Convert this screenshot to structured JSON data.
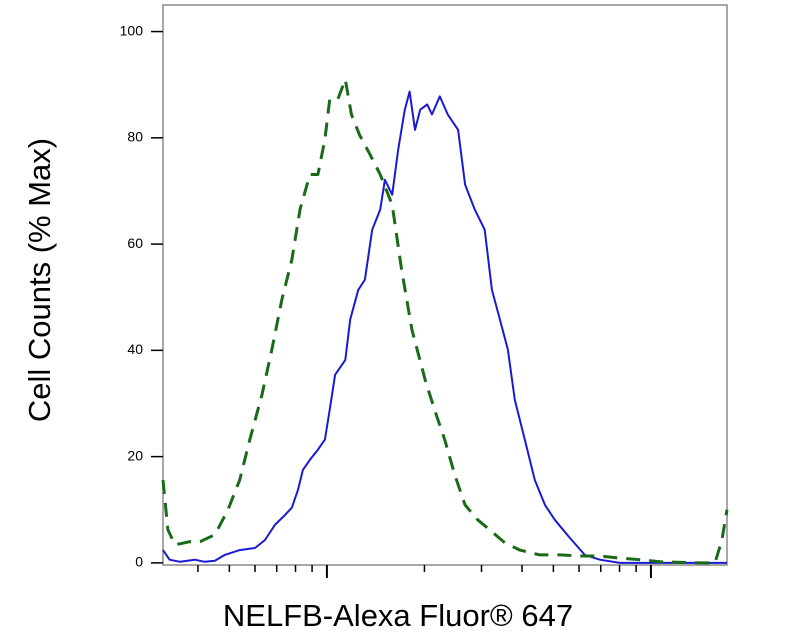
{
  "chart_data": {
    "type": "line",
    "x_label": "NELFB-Alexa Fluor® 647",
    "y_label": "Cell Counts (% Max)",
    "xscale": "log",
    "xlim": [
      31.2,
      1717
    ],
    "ylim": [
      -0.4,
      105
    ],
    "xticks": [
      40,
      50,
      60,
      70,
      80,
      90,
      100,
      200,
      300,
      400,
      500,
      600,
      700,
      800,
      900,
      1000
    ],
    "yticks": [
      0,
      20,
      40,
      60,
      80,
      100
    ],
    "series": [
      {
        "color": "#1a1ad2",
        "style": "solid",
        "x": [
          31.2,
          32.7,
          35.2,
          39.1,
          42.0,
          45.1,
          48.4,
          53.8,
          60.0,
          64.4,
          69.2,
          74.2,
          78.0,
          81.4,
          84.3,
          88.6,
          93.8,
          98.6,
          102,
          106,
          114,
          118,
          125,
          131,
          138,
          146,
          151,
          159,
          166,
          174,
          180,
          187,
          194,
          204,
          211,
          223,
          236,
          254,
          267,
          286,
          307,
          323,
          342,
          362,
          380,
          408,
          438,
          471,
          505,
          562,
          625,
          696,
          802,
          993,
          1416,
          1717
        ],
        "values": [
          2.4,
          0.6,
          0.2,
          0.6,
          0.2,
          0.4,
          1.5,
          2.4,
          2.8,
          4.3,
          7.2,
          9.0,
          10.4,
          13.7,
          17.5,
          19.4,
          21.3,
          23.2,
          28.8,
          35.4,
          38.2,
          45.8,
          51.4,
          53.3,
          62.7,
          66.5,
          72.1,
          69.3,
          77.8,
          85.3,
          88.7,
          81.5,
          85.3,
          86.3,
          84.4,
          87.8,
          84.4,
          81.5,
          71.2,
          66.5,
          62.7,
          51.4,
          45.8,
          40.1,
          30.7,
          23.2,
          15.6,
          10.9,
          8.1,
          4.7,
          1.5,
          0.6,
          0,
          0,
          0,
          0
        ]
      },
      {
        "color": "#1a6a1a",
        "style": "dashed",
        "x": [
          31.2,
          32.3,
          34.0,
          37.8,
          40.6,
          45.1,
          49.5,
          53.8,
          57.8,
          63.0,
          67.6,
          72.6,
          78.0,
          82.6,
          88.6,
          93.8,
          98.6,
          102,
          108,
          114,
          119,
          126,
          136,
          146,
          159,
          170,
          183,
          201,
          215,
          231,
          248,
          267,
          292,
          318,
          354,
          394,
          454,
          524,
          604,
          696,
          802,
          925,
          1066,
          1416,
          1577,
          1656,
          1717
        ],
        "values": [
          15.6,
          6.2,
          3.4,
          4.0,
          4.0,
          5.3,
          10.0,
          15.6,
          23.2,
          31.6,
          40.1,
          49.5,
          57.1,
          66.5,
          73.1,
          73.1,
          79.7,
          87.2,
          87.2,
          91.0,
          84.4,
          80.6,
          76.8,
          73.1,
          67.4,
          55.2,
          43.9,
          34.5,
          28.8,
          23.2,
          16.6,
          10.9,
          8.1,
          6.2,
          3.8,
          2.4,
          1.5,
          1.5,
          1.3,
          1.3,
          0.9,
          0.6,
          0.2,
          0,
          0,
          4.3,
          10.0
        ]
      }
    ]
  }
}
